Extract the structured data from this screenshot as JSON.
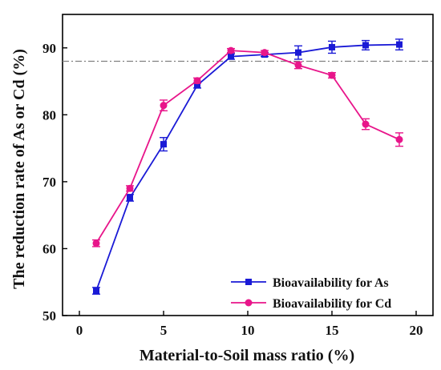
{
  "chart_data": {
    "type": "line",
    "xlabel": "Material-to-Soil mass ratio (%)",
    "ylabel": "The reduction rate of As or Cd (%)",
    "xlim": [
      -1,
      21
    ],
    "ylim": [
      50,
      95
    ],
    "x_ticks": [
      0,
      5,
      10,
      15,
      20
    ],
    "y_ticks": [
      50,
      60,
      70,
      80,
      90
    ],
    "grid": false,
    "reference_line": {
      "y": 88,
      "style": "dash-dot",
      "color": "#808080"
    },
    "legend_position": "bottom-right",
    "series": [
      {
        "name": "Bioavailability for As",
        "color": "#1a1ad6",
        "marker": "square",
        "x": [
          1,
          3,
          5,
          7,
          9,
          11,
          13,
          15,
          17,
          19
        ],
        "y": [
          53.7,
          67.6,
          75.6,
          84.4,
          88.7,
          89.0,
          89.3,
          90.1,
          90.4,
          90.5
        ],
        "err": [
          0.5,
          0.5,
          1.0,
          0.4,
          0.4,
          0.3,
          1.0,
          0.9,
          0.7,
          0.8
        ]
      },
      {
        "name": "Bioavailability for Cd",
        "color": "#e8158a",
        "marker": "circle",
        "x": [
          1,
          3,
          5,
          7,
          9,
          11,
          13,
          15,
          17,
          19
        ],
        "y": [
          60.8,
          69.0,
          81.4,
          85.1,
          89.6,
          89.3,
          87.4,
          85.9,
          78.6,
          76.3
        ],
        "err": [
          0.5,
          0.4,
          0.8,
          0.4,
          0.3,
          0.3,
          0.5,
          0.4,
          0.8,
          1.0
        ]
      }
    ]
  }
}
